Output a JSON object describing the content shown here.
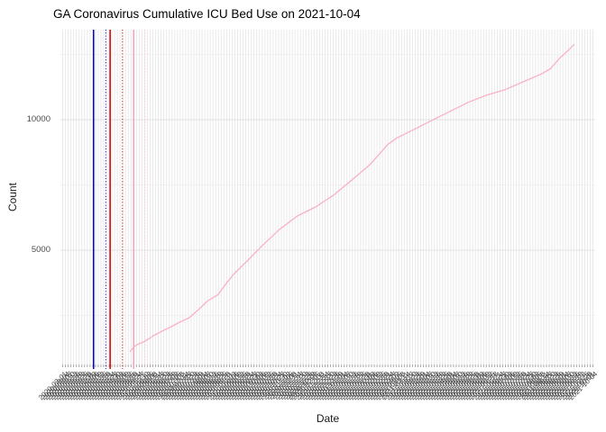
{
  "title": "GA Coronavirus Cumulative ICU Bed Use on 2021-10-04",
  "x_axis": {
    "label": "Date",
    "tick_label_start": "2020-03-01",
    "tick_label_end": "2021-10-04",
    "tick_step_days": 3,
    "tick_count": 195,
    "tick_label_angle_deg": 45,
    "tick_labels_legible": false
  },
  "y_axis": {
    "label": "Count",
    "ticks": [
      {
        "label": "5000",
        "value": 5000
      },
      {
        "label": "10000",
        "value": 10000
      }
    ]
  },
  "chart_data": {
    "type": "line",
    "title": "GA Coronavirus Cumulative ICU Bed Use on 2021-10-04",
    "xlabel": "Date",
    "ylabel": "Count",
    "x_date_range": [
      "2020-03-01",
      "2021-10-04"
    ],
    "y_domain": [
      620,
      13450
    ],
    "major_gridlines_y": [
      5000,
      10000
    ],
    "minor_gridlines_y": [
      2500,
      7500,
      12500
    ],
    "grid": true,
    "legend": false,
    "series": [
      {
        "name": "cumulative-icu-bed-use",
        "color": "#f9b1c3",
        "x_frac": [
          0.13,
          0.137,
          0.145,
          0.155,
          0.165,
          0.174,
          0.19,
          0.207,
          0.224,
          0.241,
          0.258,
          0.275,
          0.295,
          0.312,
          0.325,
          0.351,
          0.376,
          0.41,
          0.443,
          0.477,
          0.511,
          0.545,
          0.578,
          0.595,
          0.612,
          0.629,
          0.663,
          0.696,
          0.73,
          0.764,
          0.798,
          0.831,
          0.865,
          0.899,
          0.916,
          0.933,
          0.949,
          0.961
        ],
        "counts": [
          1104,
          1290,
          1400,
          1480,
          1600,
          1724,
          1900,
          2069,
          2250,
          2414,
          2720,
          3050,
          3300,
          3780,
          4100,
          4620,
          5150,
          5800,
          6310,
          6655,
          7114,
          7690,
          8266,
          8650,
          9050,
          9300,
          9645,
          9990,
          10334,
          10680,
          10950,
          11150,
          11450,
          11750,
          11950,
          12345,
          12650,
          12896
        ]
      }
    ],
    "event_vlines": [
      {
        "color": "#0000cc",
        "style": "solid",
        "x_frac": 0.062
      },
      {
        "color": "#0000cc",
        "style": "dotted",
        "x_frac": 0.085
      },
      {
        "color": "#d40000",
        "style": "solid",
        "x_frac": 0.093
      },
      {
        "color": "#d40000",
        "style": "dotted",
        "x_frac": 0.116
      },
      {
        "color": "#f8a0b8",
        "style": "solid",
        "x_frac": 0.137
      },
      {
        "color": "#fbc4d1",
        "style": "dotted",
        "x_frac": 0.158
      }
    ]
  },
  "colors": {
    "background": "#ffffff",
    "vertical_gridline": "#e9e9e9",
    "major_gridline": "#e3e3e3",
    "minor_gridline": "#f0f0f0",
    "tick_mark": "#a8a8a8",
    "axis_text": "#4d4d4d",
    "line": "#f9b1c3"
  }
}
